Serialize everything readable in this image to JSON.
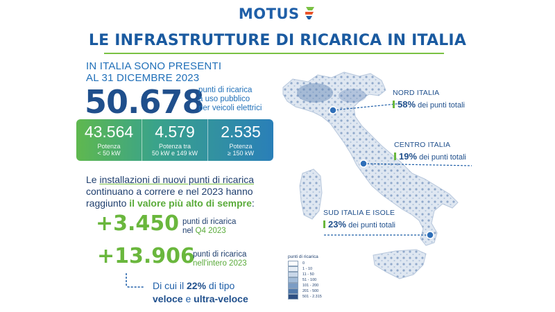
{
  "header": {
    "logo": "MOTUS",
    "title": "LE INFRASTRUTTURE DI RICARICA IN ITALIA"
  },
  "intro": {
    "line1": "IN ITALIA SONO PRESENTI",
    "line2": "AL 31 DICEMBRE 2023",
    "total": "50.678",
    "desc1": "punti di ricarica",
    "desc2": "a uso pubblico",
    "desc3": "per veicoli elettrici"
  },
  "stats": [
    {
      "value": "43.564",
      "label1": "Potenza",
      "label2": "< 50 kW"
    },
    {
      "value": "4.579",
      "label1": "Potenza tra",
      "label2": "50 kW e 149 kW"
    },
    {
      "value": "2.535",
      "label1": "Potenza",
      "label2": "≥ 150 kW"
    }
  ],
  "paragraph": {
    "p1": "Le ",
    "p2": "installazioni di nuovi punti di ricarica",
    "p3": "continuano a correre e nel 2023 hanno",
    "p4": "raggiunto ",
    "p5": "il valore più alto di sempre",
    "p6": ":"
  },
  "increments": [
    {
      "value": "+3.450",
      "desc1": "punti di ricarica",
      "desc2_pre": "nel ",
      "desc2_hl": "Q4 2023"
    },
    {
      "value": "+13.906",
      "desc1": "punti di ricarica",
      "desc2_pre": "",
      "desc2_hl": "nell'intero 2023"
    }
  ],
  "subnote": {
    "pre": "Di cui il ",
    "pct": "22%",
    "post": " di tipo",
    "fast": "veloce",
    "and": " e ",
    "ultra": "ultra-veloce"
  },
  "regions": [
    {
      "name": "NORD ITALIA",
      "pct": "58%",
      "suffix": " dei punti totali"
    },
    {
      "name": "CENTRO ITALIA",
      "pct": "19%",
      "suffix": " dei punti totali"
    },
    {
      "name": "SUD ITALIA E ISOLE",
      "pct": "23%",
      "suffix": " dei punti totali"
    }
  ],
  "legend": {
    "title": "punti di ricarica",
    "items": [
      {
        "label": "0",
        "color": "#ffffff"
      },
      {
        "label": "1 - 10",
        "color": "#e6edf5"
      },
      {
        "label": "11 - 50",
        "color": "#c9d7e8"
      },
      {
        "label": "51 - 100",
        "color": "#a3bcd8"
      },
      {
        "label": "101 - 200",
        "color": "#7b9cc4"
      },
      {
        "label": "201 - 500",
        "color": "#5179ab"
      },
      {
        "label": "501 - 2.315",
        "color": "#2d4f82"
      }
    ]
  },
  "colors": {
    "brand_blue": "#1f5fa8",
    "accent_green": "#6ab73d"
  }
}
